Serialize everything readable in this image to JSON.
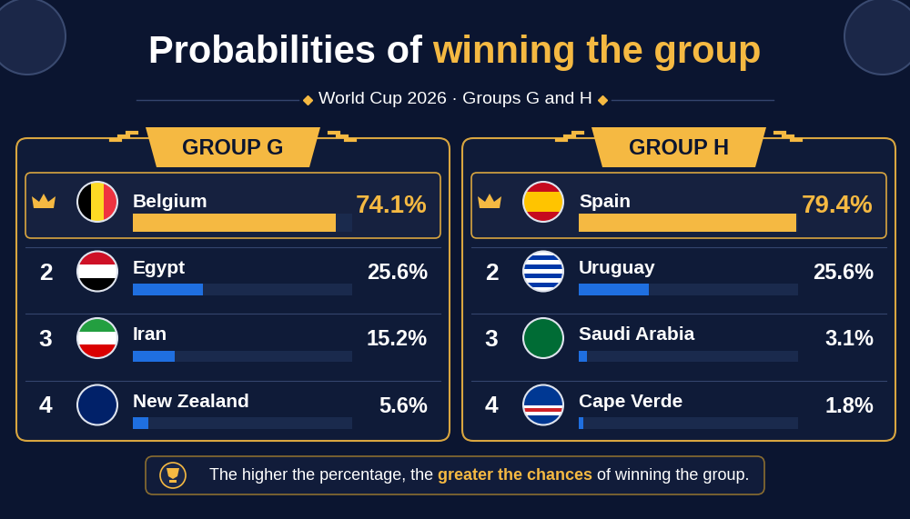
{
  "header": {
    "title": "Probabilities of winning the group",
    "title_highlight": "winning the group",
    "subtitle": "World Cup 2026 · Groups G and H"
  },
  "chart_data": [
    {
      "type": "bar",
      "title": "GROUP G",
      "orientation": "horizontal",
      "categories": [
        "Belgium",
        "Egypt",
        "Iran",
        "New Zealand"
      ],
      "ranks": [
        null,
        "2",
        "3",
        "4"
      ],
      "values": [
        74.1,
        25.6,
        15.2,
        5.6
      ],
      "value_labels": [
        "74.1%",
        "25.6%",
        "15.2%",
        "5.6%"
      ],
      "colors": [
        "#f5b942",
        "#1f6fe0",
        "#1f6fe0",
        "#1f6fe0"
      ],
      "xlim": [
        0,
        80
      ],
      "data_labels": true,
      "tick_labels": false
    },
    {
      "type": "bar",
      "title": "GROUP H",
      "orientation": "horizontal",
      "categories": [
        "Spain",
        "Uruguay",
        "Saudi Arabia",
        "Cape Verde"
      ],
      "ranks": [
        null,
        "2",
        "3",
        "4"
      ],
      "values": [
        79.4,
        25.6,
        3.1,
        1.8
      ],
      "value_labels": [
        "79.4%",
        "25.6%",
        "3.1%",
        "1.8%"
      ],
      "colors": [
        "#f5b942",
        "#1f6fe0",
        "#1f6fe0",
        "#1f6fe0"
      ],
      "xlim": [
        0,
        80
      ],
      "data_labels": true,
      "tick_labels": false
    }
  ],
  "footer": {
    "text": "The higher the percentage, the greater the chances of winning the group.",
    "highlight": "greater the chances"
  }
}
